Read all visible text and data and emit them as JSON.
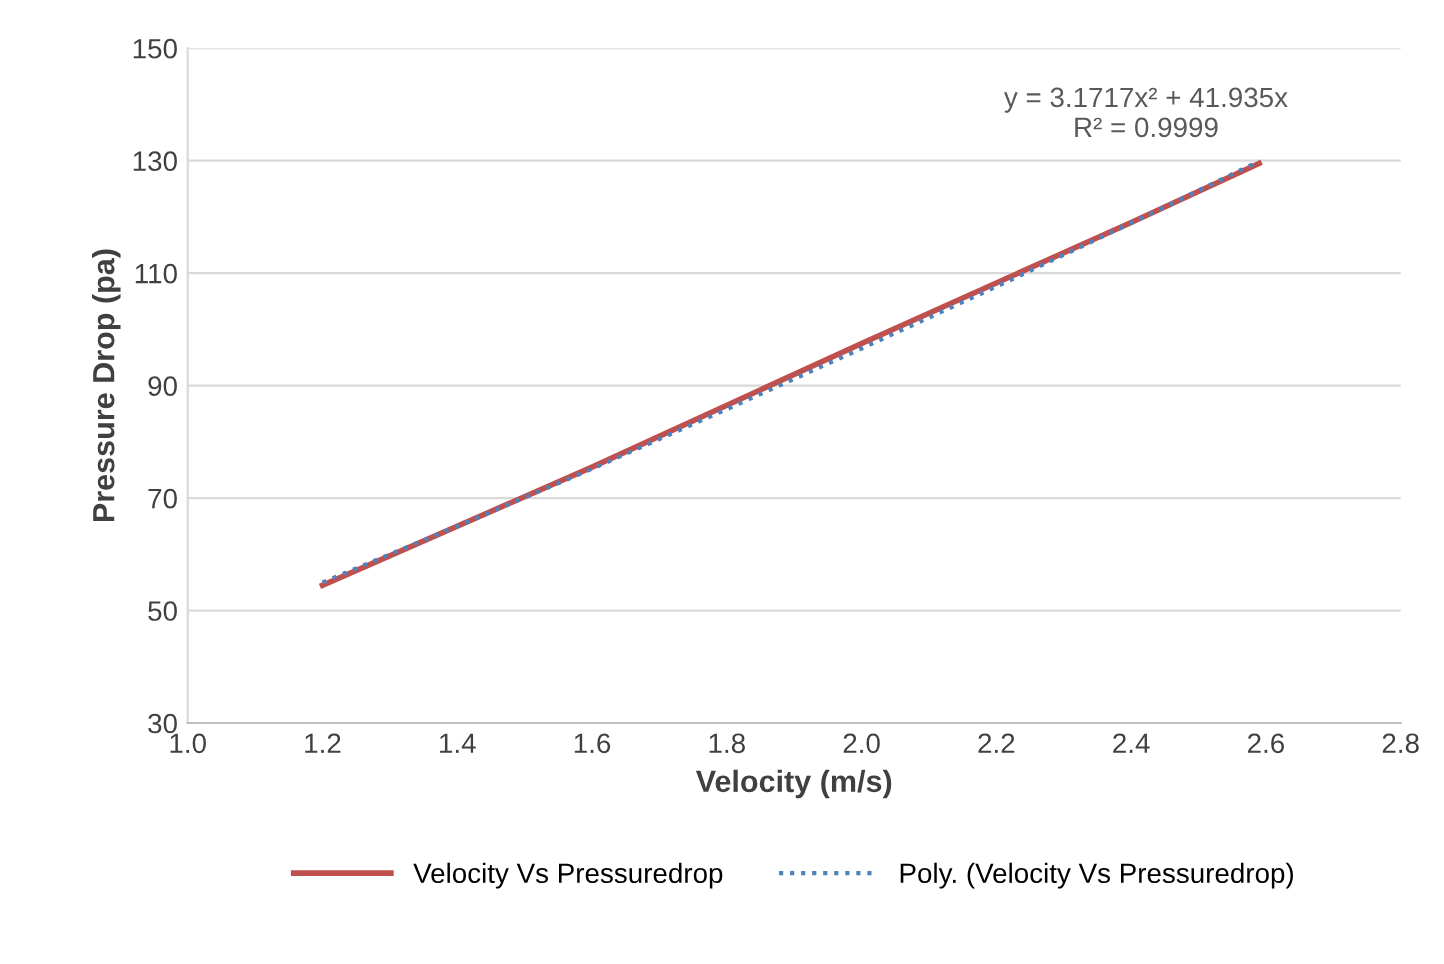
{
  "chart_data": {
    "type": "line",
    "xlabel": "Velocity (m/s)",
    "ylabel": "Pressure Drop (pa)",
    "xlim": [
      1.0,
      2.8
    ],
    "xticks": [
      {
        "value": 1.0,
        "label": "1.0"
      },
      {
        "value": 1.2,
        "label": "1.2"
      },
      {
        "value": 1.4,
        "label": "1.4"
      },
      {
        "value": 1.6,
        "label": "1.6"
      },
      {
        "value": 1.8,
        "label": "1.8"
      },
      {
        "value": 2.0,
        "label": "2.0"
      },
      {
        "value": 2.2,
        "label": "2.2"
      },
      {
        "value": 2.4,
        "label": "2.4"
      },
      {
        "value": 2.6,
        "label": "2.6"
      },
      {
        "value": 2.8,
        "label": "2.8"
      }
    ],
    "ylim": [
      30,
      150
    ],
    "yticks": [
      30,
      50,
      70,
      90,
      110,
      130,
      150
    ],
    "grid": "y",
    "legend": "bottom",
    "marker": "none",
    "series": [
      {
        "name": "Velocity Vs Pressuredrop",
        "color": "#c0504d",
        "line_style": "solid",
        "x": [
          1.2,
          1.6,
          2.0,
          2.4,
          2.59
        ],
        "values": [
          54.5,
          75.5,
          97.5,
          119,
          129.5
        ]
      },
      {
        "name": "Poly. (Velocity Vs Pressuredrop)",
        "color": "#4f81bd",
        "line_style": "dotted",
        "x": [
          1.2,
          1.4,
          1.6,
          1.8,
          2.0,
          2.2,
          2.4,
          2.59
        ],
        "values": [
          55,
          65,
          75.2,
          85.8,
          96.6,
          107.6,
          118.9,
          129.9
        ]
      }
    ],
    "annotations": [
      "y = 3.1717x² + 41.935x\nR² = 0.9999"
    ]
  }
}
